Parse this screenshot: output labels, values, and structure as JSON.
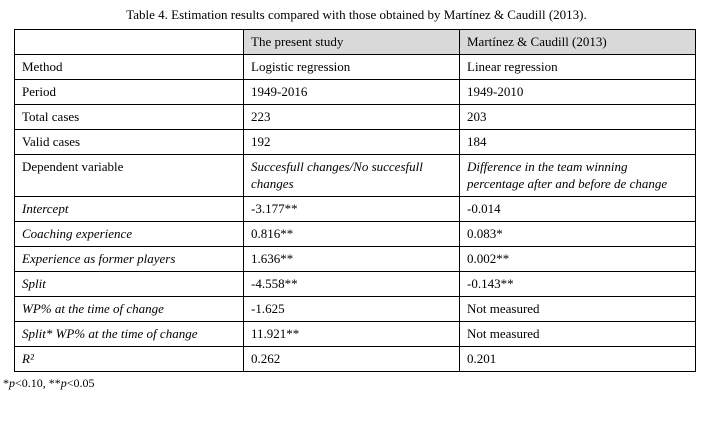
{
  "title": "Table 4. Estimation results compared with those obtained by Martínez & Caudill (2013).",
  "colors": {
    "header_bg": "#d9d9d9",
    "border": "#000000"
  },
  "table": {
    "header": [
      "",
      "The present study",
      "Martínez & Caudill (2013)"
    ],
    "rows": [
      {
        "label": "Method",
        "present": "Logistic regression",
        "caudill": "Linear regression",
        "label_italic": false,
        "value_italic": false
      },
      {
        "label": "Period",
        "present": "1949-2016",
        "caudill": "1949-2010",
        "label_italic": false,
        "value_italic": false
      },
      {
        "label": "Total cases",
        "present": "223",
        "caudill": "203",
        "label_italic": false,
        "value_italic": false
      },
      {
        "label": "Valid cases",
        "present": "192",
        "caudill": "184",
        "label_italic": false,
        "value_italic": false
      },
      {
        "label": "Dependent variable",
        "present": "Succesfull changes/No succesfull changes",
        "caudill": "Difference in the team winning percentage after and before de change",
        "label_italic": false,
        "value_italic": true
      },
      {
        "label": "Intercept",
        "present": "-3.177**",
        "caudill": "-0.014",
        "label_italic": true,
        "value_italic": false
      },
      {
        "label": "Coaching experience",
        "present": "0.816**",
        "caudill": "0.083*",
        "label_italic": true,
        "value_italic": false
      },
      {
        "label": "Experience as former players",
        "present": "1.636**",
        "caudill": "0.002**",
        "label_italic": true,
        "value_italic": false
      },
      {
        "label": "Split",
        "present": "-4.558**",
        "caudill": "-0.143**",
        "label_italic": true,
        "value_italic": false
      },
      {
        "label": "WP% at the time of change",
        "present": "-1.625",
        "caudill": "Not measured",
        "label_italic": true,
        "value_italic": false
      },
      {
        "label": "Split* WP% at the time of change",
        "present": "11.921**",
        "caudill": "Not measured",
        "label_italic": true,
        "value_italic": false
      },
      {
        "label": "R²",
        "present": "0.262",
        "caudill": "0.201",
        "label_italic": true,
        "value_italic": false
      }
    ]
  },
  "footnote": [
    {
      "text": "*",
      "italic": false
    },
    {
      "text": "p",
      "italic": true
    },
    {
      "text": "<0.10, **",
      "italic": false
    },
    {
      "text": "p",
      "italic": true
    },
    {
      "text": "<0.05",
      "italic": false
    }
  ]
}
